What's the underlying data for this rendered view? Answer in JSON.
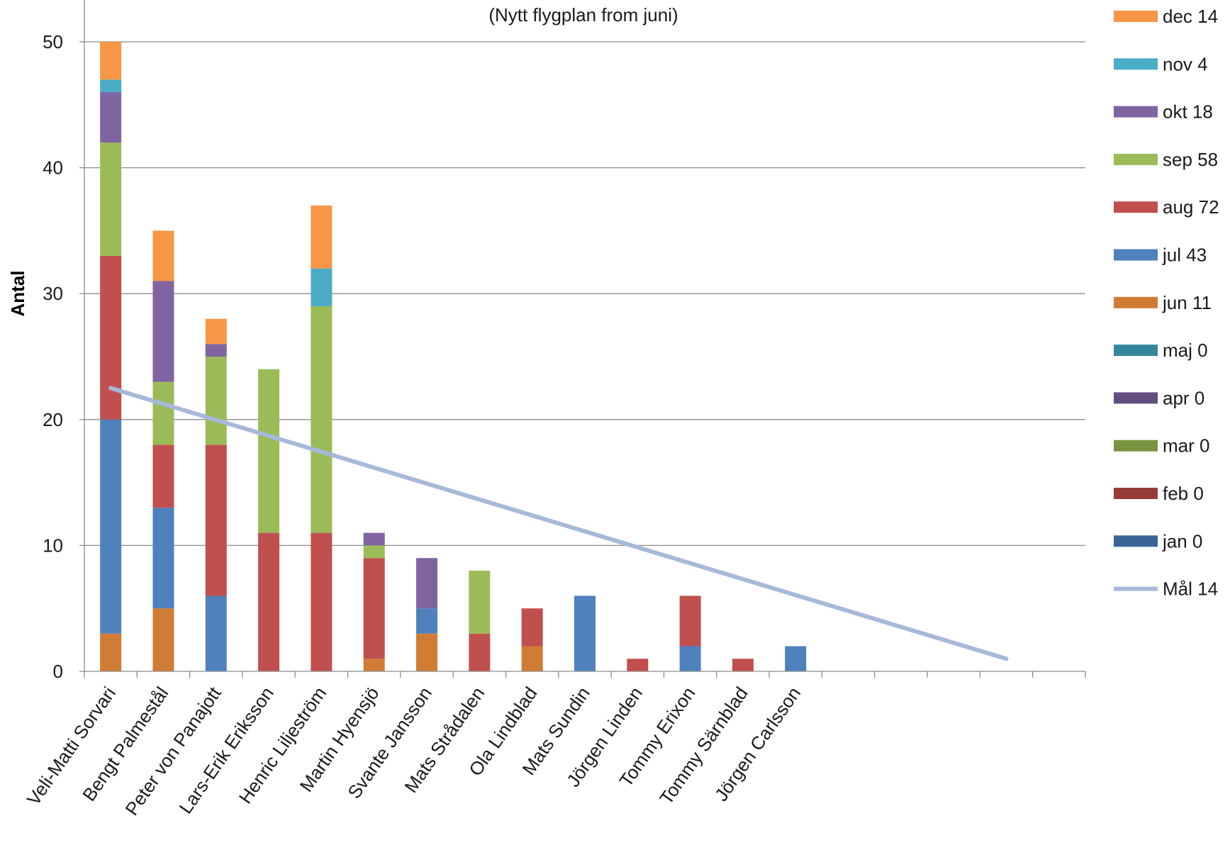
{
  "chart_data": {
    "type": "bar",
    "stacked": true,
    "title": "",
    "subtitle": "(Nytt flygplan from juni)",
    "xlabel": "",
    "ylabel": "Antal",
    "ylim": [
      0,
      50
    ],
    "yticks": [
      0,
      10,
      20,
      30,
      40,
      50
    ],
    "grid": true,
    "legend_position": "right",
    "slot_count": 19,
    "categories": [
      "Veli-Matti Sorvari",
      "Bengt Palmestål",
      "Peter von Panajott",
      "Lars-Erik Eriksson",
      "Henric Liljeström",
      "Martin Hyensjö",
      "Svante Jansson",
      "Mats Strådalen",
      "Ola Lindblad",
      "Mats Sundin",
      "Jörgen Linden",
      "Tommy Erixon",
      "Tommy Särnblad",
      "Jörgen Carlsson"
    ],
    "series": [
      {
        "name": "jan",
        "legend": "jan 0",
        "color": "#3A6496",
        "values": [
          0,
          0,
          0,
          0,
          0,
          0,
          0,
          0,
          0,
          0,
          0,
          0,
          0,
          0
        ]
      },
      {
        "name": "feb",
        "legend": "feb 0",
        "color": "#963B38",
        "values": [
          0,
          0,
          0,
          0,
          0,
          0,
          0,
          0,
          0,
          0,
          0,
          0,
          0,
          0
        ]
      },
      {
        "name": "mar",
        "legend": "mar 0",
        "color": "#789440",
        "values": [
          0,
          0,
          0,
          0,
          0,
          0,
          0,
          0,
          0,
          0,
          0,
          0,
          0,
          0
        ]
      },
      {
        "name": "apr",
        "legend": "apr 0",
        "color": "#634C7E",
        "values": [
          0,
          0,
          0,
          0,
          0,
          0,
          0,
          0,
          0,
          0,
          0,
          0,
          0,
          0
        ]
      },
      {
        "name": "maj",
        "legend": "maj 0",
        "color": "#35869B",
        "values": [
          0,
          0,
          0,
          0,
          0,
          0,
          0,
          0,
          0,
          0,
          0,
          0,
          0,
          0
        ]
      },
      {
        "name": "jun",
        "legend": "jun 11",
        "color": "#D07C34",
        "values": [
          3,
          5,
          0,
          0,
          0,
          1,
          3,
          0,
          2,
          0,
          0,
          0,
          0,
          0
        ]
      },
      {
        "name": "jul",
        "legend": "jul 43",
        "color": "#4F81BD",
        "values": [
          17,
          8,
          6,
          0,
          0,
          0,
          2,
          0,
          0,
          6,
          0,
          2,
          0,
          2
        ]
      },
      {
        "name": "aug",
        "legend": "aug 72",
        "color": "#C0504D",
        "values": [
          13,
          5,
          12,
          11,
          11,
          8,
          0,
          3,
          3,
          0,
          1,
          4,
          1,
          0
        ]
      },
      {
        "name": "sep",
        "legend": "sep 58",
        "color": "#9BBB59",
        "values": [
          9,
          5,
          7,
          13,
          18,
          1,
          0,
          5,
          0,
          0,
          0,
          0,
          0,
          0
        ]
      },
      {
        "name": "okt",
        "legend": "okt 18",
        "color": "#8064A2",
        "values": [
          4,
          8,
          1,
          0,
          0,
          1,
          4,
          0,
          0,
          0,
          0,
          0,
          0,
          0
        ]
      },
      {
        "name": "nov",
        "legend": "nov 4",
        "color": "#4BACC6",
        "values": [
          1,
          0,
          0,
          0,
          3,
          0,
          0,
          0,
          0,
          0,
          0,
          0,
          0,
          0
        ]
      },
      {
        "name": "dec",
        "legend": "dec 14",
        "color": "#F79646",
        "values": [
          3,
          4,
          2,
          0,
          5,
          0,
          0,
          0,
          0,
          0,
          0,
          0,
          0,
          0
        ]
      }
    ],
    "target_line": {
      "name": "Mål",
      "legend": "Mål 14",
      "color": "#A6B9DA",
      "from": {
        "slot": 0,
        "value": 22.5
      },
      "to": {
        "slot": 17,
        "value": 1
      }
    }
  }
}
